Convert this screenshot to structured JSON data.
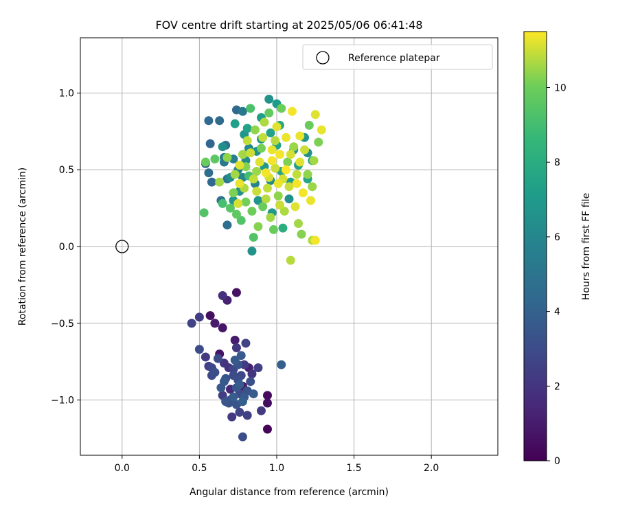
{
  "chart_data": {
    "type": "scatter",
    "title": "FOV centre drift starting at 2025/05/06 06:41:48",
    "xlabel": "Angular distance from reference (arcmin)",
    "ylabel": "Rotation from reference (arcmin)",
    "xlim": [
      -0.27,
      2.43
    ],
    "ylim": [
      -1.36,
      1.36
    ],
    "xticks": [
      0.0,
      0.5,
      1.0,
      1.5,
      2.0
    ],
    "yticks": [
      -1.0,
      -0.5,
      0.0,
      0.5,
      1.0
    ],
    "xtick_labels": [
      "0.0",
      "0.5",
      "1.0",
      "1.5",
      "2.0"
    ],
    "ytick_labels": [
      "−1.0",
      "−0.5",
      "0.0",
      "0.5",
      "1.0"
    ],
    "grid": true,
    "legend": {
      "position": "top-right",
      "entries": [
        "Reference platepar"
      ]
    },
    "reference_point": {
      "x": 0.0,
      "y": 0.0,
      "marker": "open-circle",
      "color": "#000000"
    },
    "colorbar": {
      "label": "Hours from first FF file",
      "min": 0,
      "max": 11.5,
      "ticks": [
        0,
        2,
        4,
        6,
        8,
        10
      ],
      "tick_labels": [
        "0",
        "2",
        "4",
        "6",
        "8",
        "10"
      ],
      "colormap": "viridis"
    },
    "series": [
      {
        "points": [
          [
            0.45,
            -0.5,
            2.6
          ],
          [
            0.5,
            -0.46,
            2.3
          ],
          [
            0.57,
            -0.45,
            0.5
          ],
          [
            0.6,
            -0.5,
            1.0
          ],
          [
            0.65,
            -0.53,
            0.8
          ],
          [
            0.65,
            -0.32,
            1.8
          ],
          [
            0.68,
            -0.35,
            1.2
          ],
          [
            0.74,
            -0.3,
            0.6
          ],
          [
            0.5,
            -0.67,
            3.0
          ],
          [
            0.54,
            -0.72,
            2.2
          ],
          [
            0.56,
            -0.78,
            2.5
          ],
          [
            0.58,
            -0.84,
            2.9
          ],
          [
            0.6,
            -0.82,
            3.2
          ],
          [
            0.63,
            -0.7,
            0.7
          ],
          [
            0.66,
            -0.76,
            2.0
          ],
          [
            0.67,
            -0.86,
            3.4
          ],
          [
            0.62,
            -0.73,
            3.0
          ],
          [
            0.64,
            -0.92,
            3.6
          ],
          [
            0.65,
            -0.97,
            2.4
          ],
          [
            0.67,
            -1.01,
            3.5
          ],
          [
            0.69,
            -1.02,
            3.3
          ],
          [
            0.7,
            -0.93,
            1.5
          ],
          [
            0.71,
            -1.11,
            2.2
          ],
          [
            0.72,
            -0.98,
            3.8
          ],
          [
            0.72,
            -0.8,
            2.7
          ],
          [
            0.73,
            -0.74,
            3.6
          ],
          [
            0.73,
            -0.61,
            1.0
          ],
          [
            0.74,
            -0.66,
            2.1
          ],
          [
            0.75,
            -0.87,
            3.1
          ],
          [
            0.75,
            -0.77,
            3.4
          ],
          [
            0.76,
            -0.96,
            3.0
          ],
          [
            0.76,
            -1.08,
            2.6
          ],
          [
            0.77,
            -0.84,
            2.8
          ],
          [
            0.77,
            -0.71,
            3.7
          ],
          [
            0.78,
            -0.91,
            0.9
          ],
          [
            0.78,
            -1.01,
            3.9
          ],
          [
            0.78,
            -1.24,
            3.1
          ],
          [
            0.8,
            -0.63,
            2.6
          ],
          [
            0.81,
            -0.94,
            3.3
          ],
          [
            0.81,
            -1.1,
            2.5
          ],
          [
            0.82,
            -0.79,
            1.1
          ],
          [
            0.84,
            -0.83,
            2.0
          ],
          [
            0.85,
            -0.96,
            3.8
          ],
          [
            0.88,
            -0.79,
            2.4
          ],
          [
            0.9,
            -1.07,
            2.2
          ],
          [
            0.94,
            -0.97,
            0.4
          ],
          [
            0.94,
            -1.02,
            0.5
          ],
          [
            0.94,
            -1.19,
            0.2
          ],
          [
            1.03,
            -0.77,
            3.9
          ],
          [
            0.72,
            -0.84,
            3.0
          ],
          [
            0.69,
            -0.79,
            1.9
          ],
          [
            0.74,
            -0.92,
            3.5
          ],
          [
            0.76,
            -0.9,
            3.7
          ],
          [
            0.7,
            -1.0,
            2.9
          ],
          [
            0.79,
            -0.77,
            2.3
          ],
          [
            0.83,
            -0.88,
            3.2
          ],
          [
            0.66,
            -0.88,
            3.6
          ],
          [
            0.74,
            -1.03,
            3.4
          ],
          [
            0.58,
            -0.79,
            2.8
          ],
          [
            0.79,
            -0.98,
            3.6
          ]
        ]
      },
      {
        "points": [
          [
            0.56,
            0.82,
            4.4
          ],
          [
            0.57,
            0.67,
            4.2
          ],
          [
            0.54,
            0.54,
            4.0
          ],
          [
            0.56,
            0.48,
            4.6
          ],
          [
            0.58,
            0.42,
            4.4
          ],
          [
            0.63,
            0.82,
            4.5
          ],
          [
            0.64,
            0.3,
            4.8
          ],
          [
            0.65,
            0.65,
            6.4
          ],
          [
            0.66,
            0.55,
            5.2
          ],
          [
            0.67,
            0.66,
            4.7
          ],
          [
            0.68,
            0.44,
            5.1
          ],
          [
            0.68,
            0.14,
            4.6
          ],
          [
            0.72,
            0.57,
            5.5
          ],
          [
            0.73,
            0.8,
            7.3
          ],
          [
            0.74,
            0.89,
            4.4
          ],
          [
            0.75,
            0.5,
            5.9
          ],
          [
            0.76,
            0.36,
            6.5
          ],
          [
            0.78,
            0.88,
            5.2
          ],
          [
            0.79,
            0.73,
            6.8
          ],
          [
            0.8,
            0.56,
            6.2
          ],
          [
            0.81,
            0.77,
            7.4
          ],
          [
            0.82,
            0.64,
            6.1
          ],
          [
            0.84,
            -0.03,
            6.6
          ],
          [
            0.86,
            0.41,
            5.8
          ],
          [
            0.88,
            0.3,
            6.7
          ],
          [
            0.9,
            0.84,
            7.2
          ],
          [
            0.92,
            0.52,
            7.0
          ],
          [
            0.95,
            0.96,
            6.6
          ],
          [
            0.96,
            0.74,
            7.5
          ],
          [
            0.97,
            0.22,
            6.9
          ],
          [
            1.0,
            0.93,
            7.1
          ],
          [
            1.02,
            0.79,
            7.8
          ],
          [
            1.03,
            0.49,
            7.7
          ],
          [
            1.04,
            0.12,
            8.1
          ],
          [
            1.09,
            0.42,
            7.2
          ],
          [
            1.14,
            0.53,
            7.4
          ],
          [
            1.18,
            0.71,
            6.8
          ],
          [
            1.2,
            0.44,
            7.6
          ],
          [
            1.2,
            0.61,
            6.4
          ],
          [
            1.23,
            0.56,
            7.8
          ],
          [
            0.7,
            0.45,
            6.3
          ],
          [
            0.72,
            0.3,
            6.8
          ],
          [
            0.78,
            0.45,
            6.0
          ],
          [
            0.87,
            0.62,
            6.6
          ],
          [
            0.96,
            0.43,
            6.2
          ],
          [
            1.08,
            0.31,
            6.5
          ],
          [
            1.11,
            0.63,
            6.9
          ],
          [
            0.66,
            0.58,
            5.6
          ],
          [
            0.9,
            0.7,
            7.0
          ],
          [
            1.0,
            0.66,
            7.4
          ]
        ]
      },
      {
        "points": [
          [
            0.53,
            0.22,
            9.4
          ],
          [
            0.54,
            0.55,
            9.9
          ],
          [
            0.6,
            0.57,
            9.6
          ],
          [
            0.63,
            0.42,
            10.6
          ],
          [
            0.65,
            0.28,
            9.1
          ],
          [
            0.68,
            0.58,
            10.4
          ],
          [
            0.7,
            0.25,
            9.5
          ],
          [
            0.72,
            0.35,
            10.2
          ],
          [
            0.74,
            0.21,
            9.7
          ],
          [
            0.75,
            0.28,
            11.1
          ],
          [
            0.76,
            0.41,
            11.3
          ],
          [
            0.77,
            0.17,
            9.4
          ],
          [
            0.78,
            0.6,
            10.6
          ],
          [
            0.8,
            0.52,
            10.3
          ],
          [
            0.81,
            0.69,
            10.9
          ],
          [
            0.82,
            0.46,
            9.0
          ],
          [
            0.83,
            0.9,
            9.2
          ],
          [
            0.84,
            0.23,
            10.0
          ],
          [
            0.85,
            0.06,
            9.4
          ],
          [
            0.86,
            0.76,
            10.4
          ],
          [
            0.87,
            0.36,
            11.0
          ],
          [
            0.88,
            0.13,
            10.3
          ],
          [
            0.89,
            0.55,
            11.2
          ],
          [
            0.9,
            0.64,
            10.1
          ],
          [
            0.91,
            0.26,
            9.9
          ],
          [
            0.92,
            0.81,
            10.7
          ],
          [
            0.93,
            0.48,
            11.4
          ],
          [
            0.94,
            0.38,
            10.9
          ],
          [
            0.95,
            0.87,
            9.8
          ],
          [
            0.96,
            0.19,
            10.6
          ],
          [
            0.97,
            0.63,
            11.3
          ],
          [
            0.98,
            0.11,
            9.9
          ],
          [
            0.99,
            0.51,
            11.0
          ],
          [
            1.0,
            0.78,
            11.2
          ],
          [
            1.01,
            0.33,
            10.4
          ],
          [
            1.02,
            0.6,
            11.4
          ],
          [
            1.03,
            0.9,
            10.0
          ],
          [
            1.04,
            0.44,
            11.1
          ],
          [
            1.05,
            0.23,
            10.7
          ],
          [
            1.06,
            0.71,
            11.3
          ],
          [
            1.07,
            0.55,
            10.2
          ],
          [
            1.08,
            0.39,
            11.0
          ],
          [
            1.09,
            -0.09,
            10.8
          ],
          [
            1.1,
            0.88,
            11.4
          ],
          [
            1.11,
            0.65,
            10.5
          ],
          [
            1.12,
            0.26,
            11.2
          ],
          [
            1.13,
            0.47,
            10.9
          ],
          [
            1.14,
            0.15,
            10.6
          ],
          [
            1.15,
            0.72,
            11.3
          ],
          [
            1.16,
            0.08,
            10.3
          ],
          [
            1.17,
            0.35,
            11.4
          ],
          [
            1.18,
            0.63,
            11.0
          ],
          [
            1.2,
            0.47,
            10.4
          ],
          [
            1.21,
            0.79,
            9.9
          ],
          [
            1.22,
            0.3,
            11.3
          ],
          [
            1.23,
            0.04,
            10.8
          ],
          [
            1.24,
            0.56,
            10.6
          ],
          [
            1.25,
            0.86,
            11.2
          ],
          [
            1.27,
            0.68,
            10.2
          ],
          [
            1.29,
            0.76,
            11.3
          ],
          [
            1.23,
            0.39,
            10.5
          ],
          [
            1.25,
            0.04,
            11.4
          ],
          [
            0.99,
            0.69,
            10.8
          ],
          [
            0.95,
            0.45,
            11.1
          ],
          [
            0.91,
            0.71,
            10.9
          ],
          [
            0.87,
            0.49,
            10.5
          ],
          [
            0.83,
            0.61,
            11.0
          ],
          [
            0.79,
            0.38,
            10.7
          ],
          [
            0.76,
            0.53,
            11.2
          ],
          [
            0.73,
            0.47,
            10.6
          ],
          [
            1.06,
            0.5,
            11.5
          ],
          [
            1.01,
            0.41,
            11.3
          ],
          [
            0.97,
            0.56,
            11.4
          ],
          [
            1.09,
            0.6,
            11.1
          ],
          [
            1.13,
            0.41,
            11.4
          ],
          [
            0.93,
            0.31,
            10.8
          ],
          [
            0.85,
            0.44,
            10.9
          ],
          [
            1.02,
            0.27,
            11.0
          ],
          [
            1.15,
            0.55,
            11.2
          ],
          [
            0.8,
            0.29,
            10.1
          ]
        ]
      }
    ]
  }
}
